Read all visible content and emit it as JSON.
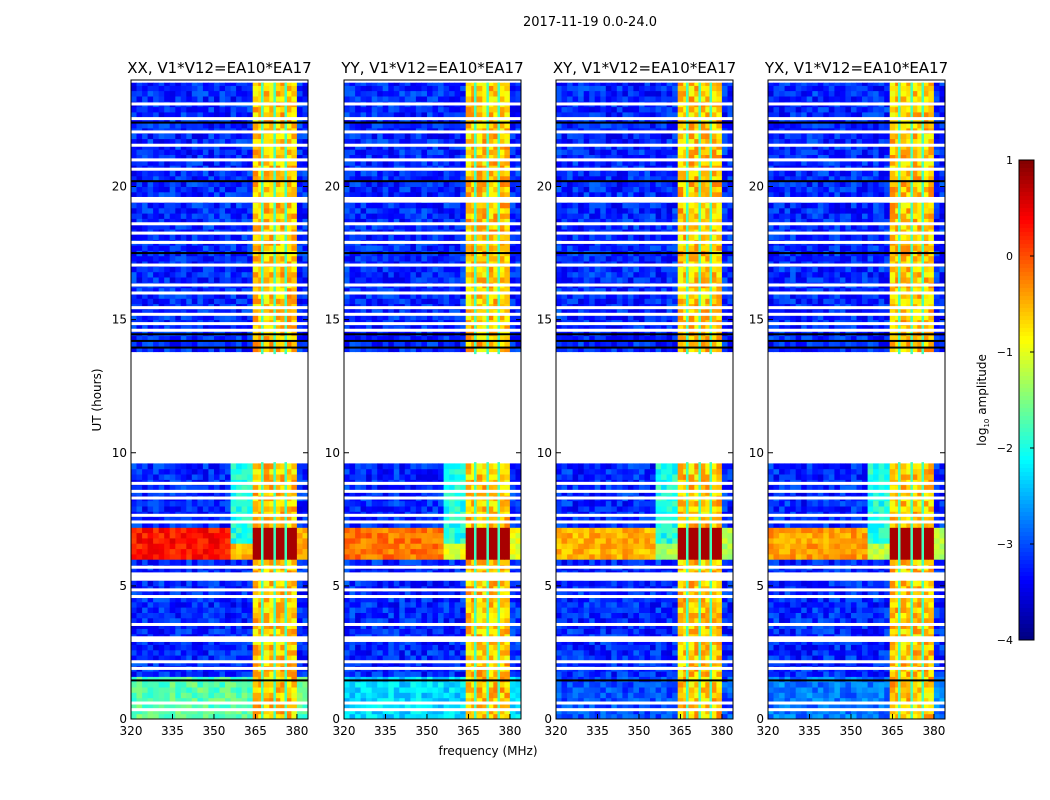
{
  "chart_data": {
    "type": "heatmap",
    "title": "2017-11-19 0.0-24.0",
    "xlabel": "frequency (MHz)",
    "ylabel": "UT (hours)",
    "xlim": [
      320,
      384
    ],
    "ylim": [
      0,
      24
    ],
    "xticks": [
      320,
      335,
      350,
      365,
      380
    ],
    "yticks": [
      0,
      5,
      10,
      15,
      20
    ],
    "colorbar": {
      "label_main": "log",
      "label_sub": "10",
      "label_rest": " amplitude",
      "range": [
        -4,
        1
      ],
      "ticks": [
        1,
        0,
        -1,
        -2,
        -3,
        -4
      ],
      "tick_labels": [
        "1",
        "0",
        "−1",
        "−2",
        "−3",
        "−4"
      ],
      "colormap": "jet"
    },
    "data_gap_hours": [
      9.65,
      13.7
    ],
    "background_level": -3.2,
    "rfi_band_mhz": [
      363,
      379.5
    ],
    "rfi_band_level": -0.6,
    "subband_gap_mhz": [
      367,
      371.5,
      375.5
    ],
    "subband_gap_level": -1.8,
    "strong_rfi_hours": [
      5.9,
      7.1
    ],
    "flagged_hours": [
      0.35,
      0.6,
      1.9,
      2.15,
      2.95,
      3.05,
      3.55,
      4.6,
      4.85,
      5.25,
      5.35,
      5.45,
      5.7,
      7.4,
      7.65,
      8.3,
      8.55,
      8.85,
      14.6,
      14.85,
      15.2,
      15.45,
      16.0,
      16.3,
      17.05,
      17.9,
      18.25,
      18.6,
      19.45,
      19.55,
      20.65,
      21.0,
      21.55,
      22.05,
      22.55,
      23.1
    ],
    "black_line_hours": [
      1.45,
      13.95,
      14.2,
      14.45,
      17.5,
      20.2,
      22.4
    ],
    "panels": [
      {
        "title": "XX, V1*V12=EA10*EA17",
        "strong_rfi_level": 0.3,
        "low_band_level": -1.7
      },
      {
        "title": "YY, V1*V12=EA10*EA17",
        "strong_rfi_level": -0.2,
        "low_band_level": -2.3
      },
      {
        "title": "XY, V1*V12=EA10*EA17",
        "strong_rfi_level": -0.5,
        "low_band_level": -3.0
      },
      {
        "title": "YX, V1*V12=EA10*EA17",
        "strong_rfi_level": -0.4,
        "low_band_level": -2.8
      }
    ]
  }
}
